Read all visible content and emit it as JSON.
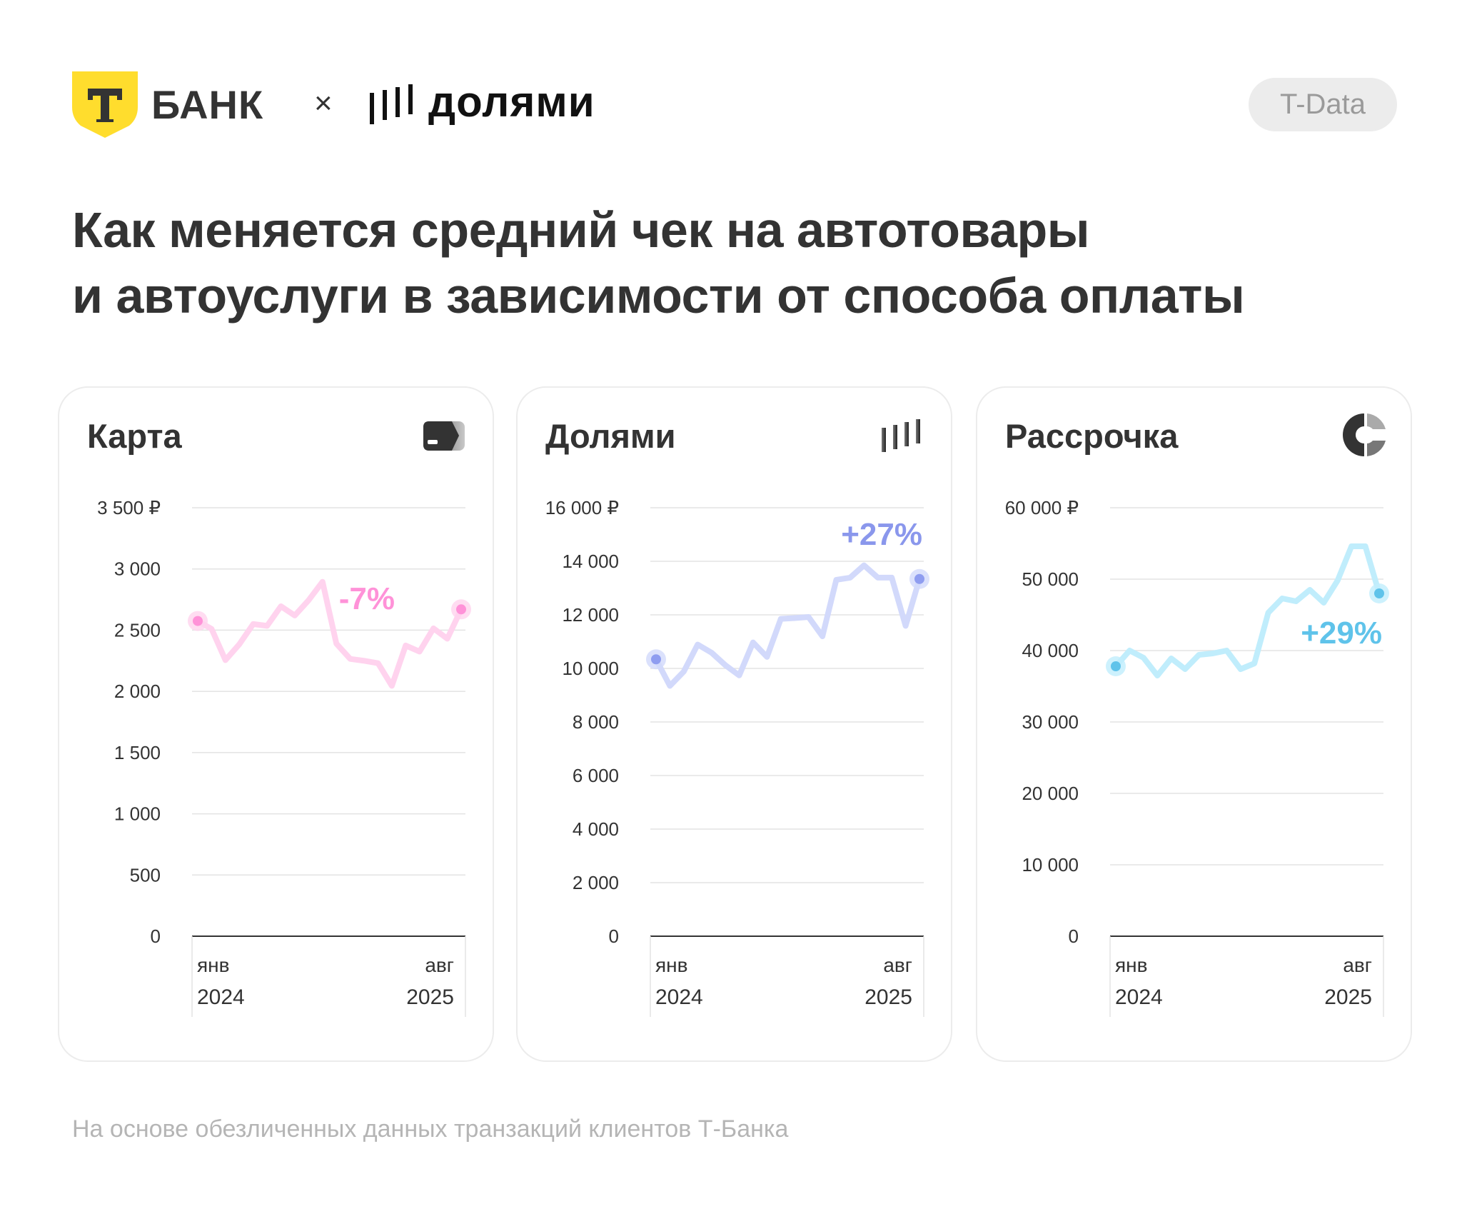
{
  "header": {
    "bank_logo_text": "БАНК",
    "bank_logo_letter": "Т",
    "separator": "×",
    "partner_logo_text": "долями",
    "badge": "T-Data"
  },
  "title_lines": [
    "Как меняется средний чек на автотовары",
    "и автоуслуги в зависимости от способа оплаты"
  ],
  "footer": "На основе обезличенных данных транзакций клиентов Т-Банка",
  "colors": {
    "brand_yellow": "#ffdd2d",
    "text": "#333333"
  },
  "chart_data": [
    {
      "type": "line",
      "title": "Карта",
      "icon": "card-icon",
      "x": [
        "2024-01",
        "2024-02",
        "2024-03",
        "2024-04",
        "2024-05",
        "2024-06",
        "2024-07",
        "2024-08",
        "2024-09",
        "2024-10",
        "2024-11",
        "2024-12",
        "2025-01",
        "2025-02",
        "2025-03",
        "2025-04",
        "2025-05",
        "2025-06",
        "2025-07",
        "2025-08"
      ],
      "x_tick_labels": [
        {
          "month": "янв",
          "year": "2024"
        },
        {
          "month": "авг",
          "year": "2025"
        }
      ],
      "values": [
        2575,
        2510,
        2255,
        2385,
        2550,
        2535,
        2695,
        2620,
        2745,
        2895,
        2390,
        2265,
        2250,
        2230,
        2045,
        2375,
        2325,
        2515,
        2430,
        2670
      ],
      "yticks": [
        0,
        500,
        1000,
        1500,
        2000,
        2500,
        3000,
        3500
      ],
      "ytick_labels": [
        "0",
        "500",
        "1 000",
        "1 500",
        "2 000",
        "2 500",
        "3 000",
        "3 500 ₽"
      ],
      "ylim": [
        0,
        3500
      ],
      "annotation": "-7%",
      "line_color": "#ffd3ee",
      "dot_color": "#ff92d8",
      "label_color": "#ff92d8",
      "grid": true
    },
    {
      "type": "line",
      "title": "Долями",
      "icon": "dolyami-bars-icon",
      "x": [
        "2024-01",
        "2024-02",
        "2024-03",
        "2024-04",
        "2024-05",
        "2024-06",
        "2024-07",
        "2024-08",
        "2024-09",
        "2024-10",
        "2024-11",
        "2024-12",
        "2025-01",
        "2025-02",
        "2025-03",
        "2025-04",
        "2025-05",
        "2025-06",
        "2025-07",
        "2025-08"
      ],
      "x_tick_labels": [
        {
          "month": "янв",
          "year": "2024"
        },
        {
          "month": "авг",
          "year": "2025"
        }
      ],
      "values": [
        10340,
        9350,
        9880,
        10890,
        10590,
        10120,
        9740,
        10970,
        10430,
        11850,
        11880,
        11920,
        11200,
        13310,
        13390,
        13850,
        13390,
        13390,
        11590,
        13340
      ],
      "yticks": [
        0,
        2000,
        4000,
        6000,
        8000,
        10000,
        12000,
        14000,
        16000
      ],
      "ytick_labels": [
        "0",
        "2 000",
        "4 000",
        "6 000",
        "8 000",
        "10 000",
        "12 000",
        "14 000",
        "16 000 ₽"
      ],
      "ylim": [
        0,
        16000
      ],
      "annotation": "+27%",
      "line_color": "#d2d9fb",
      "dot_color": "#8f9df0",
      "label_color": "#8a97ec",
      "grid": true
    },
    {
      "type": "line",
      "title": "Рассрочка",
      "icon": "installment-donut-icon",
      "x": [
        "2024-01",
        "2024-02",
        "2024-03",
        "2024-04",
        "2024-05",
        "2024-06",
        "2024-07",
        "2024-08",
        "2024-09",
        "2024-10",
        "2024-11",
        "2024-12",
        "2025-01",
        "2025-02",
        "2025-03",
        "2025-04",
        "2025-05",
        "2025-06",
        "2025-07",
        "2025-08"
      ],
      "x_tick_labels": [
        {
          "month": "янв",
          "year": "2024"
        },
        {
          "month": "авг",
          "year": "2025"
        }
      ],
      "values": [
        37800,
        40000,
        39000,
        36500,
        38900,
        37400,
        39400,
        39600,
        40000,
        37400,
        38200,
        45300,
        47300,
        46900,
        48500,
        46700,
        49800,
        54600,
        54600,
        48000
      ],
      "yticks": [
        0,
        10000,
        20000,
        30000,
        40000,
        50000,
        60000
      ],
      "ytick_labels": [
        "0",
        "10 000",
        "20 000",
        "30 000",
        "40 000",
        "50 000",
        "60 000 ₽"
      ],
      "ylim": [
        0,
        60000
      ],
      "annotation": "+29%",
      "line_color": "#c0edfc",
      "dot_color": "#5fc3ea",
      "label_color": "#5fc3ea",
      "grid": true
    }
  ]
}
